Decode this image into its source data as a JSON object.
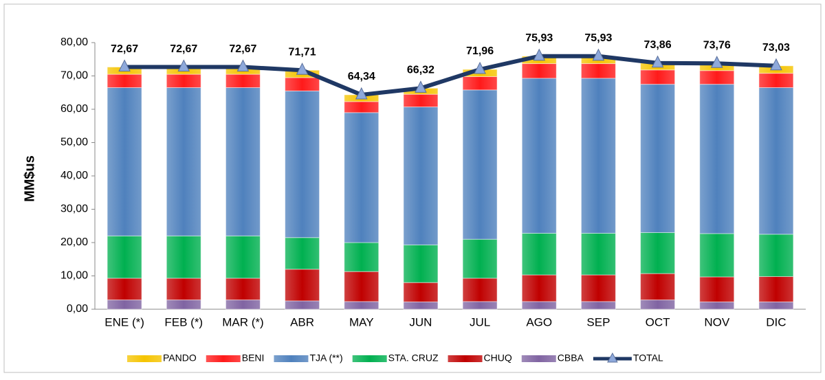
{
  "chart_data": {
    "type": "bar",
    "stacked": true,
    "y_label": "MM$us",
    "categories": [
      "ENE (*)",
      "FEB (*)",
      "MAR (*)",
      "ABR",
      "MAY",
      "JUN",
      "JUL",
      "AGO",
      "SEP",
      "OCT",
      "NOV",
      "DIC"
    ],
    "ylim": [
      0,
      80
    ],
    "yticks": [
      {
        "value": 0,
        "label": "0,00"
      },
      {
        "value": 10,
        "label": "10,00"
      },
      {
        "value": 20,
        "label": "20,00"
      },
      {
        "value": 30,
        "label": "30,00"
      },
      {
        "value": 40,
        "label": "40,00"
      },
      {
        "value": 50,
        "label": "50,00"
      },
      {
        "value": 60,
        "label": "60,00"
      },
      {
        "value": 70,
        "label": "70,00"
      },
      {
        "value": 80,
        "label": "80,00"
      }
    ],
    "grid": false,
    "series": [
      {
        "name": "CBBA",
        "color": "#8064a2",
        "values": [
          2.8,
          2.8,
          2.8,
          2.5,
          2.3,
          2.2,
          2.3,
          2.3,
          2.3,
          2.8,
          2.2,
          2.2
        ]
      },
      {
        "name": "CHUQ",
        "color": "#c00000",
        "values": [
          6.5,
          6.5,
          6.5,
          9.5,
          9.0,
          5.8,
          7.0,
          8.0,
          8.0,
          7.9,
          7.5,
          7.6
        ]
      },
      {
        "name": "STA. CRUZ",
        "color": "#00b050",
        "values": [
          12.7,
          12.7,
          12.7,
          9.5,
          8.7,
          11.3,
          11.7,
          12.5,
          12.5,
          12.3,
          13.0,
          12.7
        ]
      },
      {
        "name": "TJA (**)",
        "color": "#4f81bd",
        "values": [
          44.5,
          44.5,
          44.5,
          44.0,
          39.0,
          41.4,
          44.8,
          46.5,
          46.5,
          44.5,
          44.8,
          44.0
        ]
      },
      {
        "name": "BENI",
        "color": "#ff1a1a",
        "values": [
          4.0,
          4.0,
          4.0,
          4.0,
          3.3,
          3.8,
          4.0,
          4.4,
          4.4,
          4.3,
          4.1,
          4.3
        ]
      },
      {
        "name": "PANDO",
        "color": "#f5c400",
        "values": [
          2.17,
          2.17,
          2.17,
          2.21,
          2.04,
          1.82,
          2.16,
          2.23,
          2.23,
          2.06,
          2.16,
          2.23
        ]
      },
      {
        "name": "TOTAL",
        "type": "line",
        "color": "#1f3864",
        "marker_color": "#8ea9db",
        "values": [
          72.67,
          72.67,
          72.67,
          71.71,
          64.34,
          66.32,
          71.96,
          75.93,
          75.93,
          73.86,
          73.76,
          73.03
        ],
        "value_labels": [
          "72,67",
          "72,67",
          "72,67",
          "71,71",
          "64,34",
          "66,32",
          "71,96",
          "75,93",
          "75,93",
          "73,86",
          "73,76",
          "73,03"
        ]
      }
    ],
    "legend_order": [
      5,
      4,
      3,
      2,
      1,
      0,
      6
    ]
  }
}
